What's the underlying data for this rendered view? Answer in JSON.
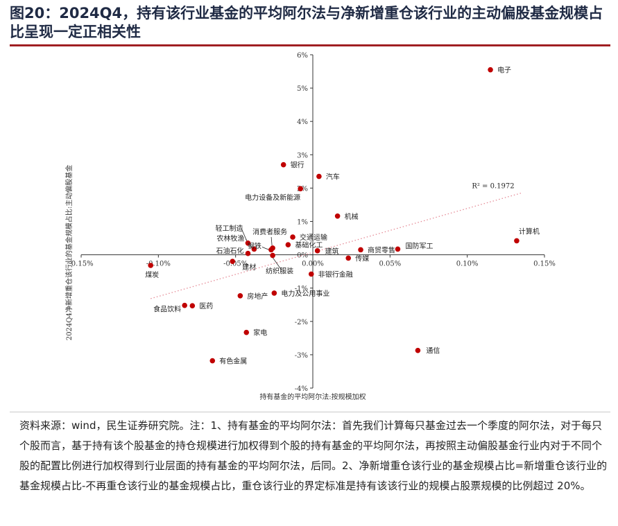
{
  "header": {
    "title": "图20：2024Q4，持有该行业基金的平均阿尔法与净新增重仓该行业的主动偏股基金规模占比呈现一定正相关性"
  },
  "footer": {
    "source": "资料来源：wind，民生证券研究院。注：1、持有基金的平均阿尔法：首先我们计算每只基金过去一个季度的阿尔法，对于每只个股而言，基于持有该个股基金的持仓规模进行加权得到个股的持有基金的平均阿尔法，再按照主动偏股基金行业内对于不同个股的配置比例进行加权得到行业层面的持有基金的平均阿尔法，后同。2、净新增重仓该行业的基金规模占比=新增重仓该行业的基金规模占比-不再重仓该行业的基金规模占比，重仓该行业的界定标准是持有该该行业的规模占股票规模的比例超过 20%。"
  },
  "chart_data": {
    "type": "scatter",
    "xlabel": "持有基金的平均阿尔法:按规模加权",
    "ylabel": "2024Q4净新增重仓该行业的基金规模占比:主动偏股基金",
    "xlim": [
      -0.15,
      0.15
    ],
    "ylim": [
      -4,
      6
    ],
    "x_ticks": [
      -0.15,
      -0.1,
      -0.05,
      0.0,
      0.05,
      0.1,
      0.15
    ],
    "x_tick_labels": [
      "-0.15%",
      "-0.10%",
      "-0.05%",
      "0.00%",
      "0.05%",
      "0.10%",
      "0.15%"
    ],
    "y_ticks": [
      -4,
      -3,
      -2,
      -1,
      0,
      1,
      2,
      3,
      4,
      5,
      6
    ],
    "y_tick_labels": [
      "-4%",
      "-3%",
      "-2%",
      "-1%",
      "0%",
      "1%",
      "2%",
      "3%",
      "4%",
      "5%",
      "6%"
    ],
    "grid": false,
    "point_color": "#c00000",
    "trend_color": "#e58a96",
    "trendline": {
      "slope": 13.2,
      "intercept": 0.07,
      "r2_label": "R² = 0.1972"
    },
    "points": [
      {
        "name": "电子",
        "x": 0.115,
        "y": 5.55
      },
      {
        "name": "计算机",
        "x": 0.132,
        "y": 0.42
      },
      {
        "name": "通信",
        "x": 0.068,
        "y": -2.87
      },
      {
        "name": "国防军工",
        "x": 0.055,
        "y": 0.17
      },
      {
        "name": "商贸零售",
        "x": 0.031,
        "y": 0.15
      },
      {
        "name": "传媒",
        "x": 0.023,
        "y": -0.1
      },
      {
        "name": "建筑",
        "x": 0.003,
        "y": 0.12
      },
      {
        "name": "非银行金融",
        "x": -0.001,
        "y": -0.58
      },
      {
        "name": "机械",
        "x": 0.016,
        "y": 1.16
      },
      {
        "name": "汽车",
        "x": 0.004,
        "y": 2.35
      },
      {
        "name": "银行",
        "x": -0.019,
        "y": 2.7
      },
      {
        "name": "电力设备及新能源",
        "x": -0.008,
        "y": 1.98
      },
      {
        "name": "交通运输",
        "x": -0.013,
        "y": 0.53
      },
      {
        "name": "基础化工",
        "x": -0.016,
        "y": 0.3
      },
      {
        "name": "消费者服务",
        "x": -0.026,
        "y": 0.2
      },
      {
        "name": "轻工制造",
        "x": -0.042,
        "y": 0.35
      },
      {
        "name": "农林牧渔",
        "x": -0.038,
        "y": 0.17
      },
      {
        "name": "钢铁",
        "x": -0.027,
        "y": 0.15
      },
      {
        "name": "纺织服装",
        "x": -0.026,
        "y": -0.02
      },
      {
        "name": "石油石化",
        "x": -0.042,
        "y": 0.04
      },
      {
        "name": "建材",
        "x": -0.052,
        "y": -0.2
      },
      {
        "name": "煤炭",
        "x": -0.105,
        "y": -0.32
      },
      {
        "name": "电力及公用事业",
        "x": -0.025,
        "y": -1.15
      },
      {
        "name": "房地产",
        "x": -0.047,
        "y": -1.23
      },
      {
        "name": "食品饮料",
        "x": -0.083,
        "y": -1.52
      },
      {
        "name": "医药",
        "x": -0.078,
        "y": -1.53
      },
      {
        "name": "家电",
        "x": -0.043,
        "y": -2.33
      },
      {
        "name": "有色金属",
        "x": -0.065,
        "y": -3.18
      }
    ]
  }
}
